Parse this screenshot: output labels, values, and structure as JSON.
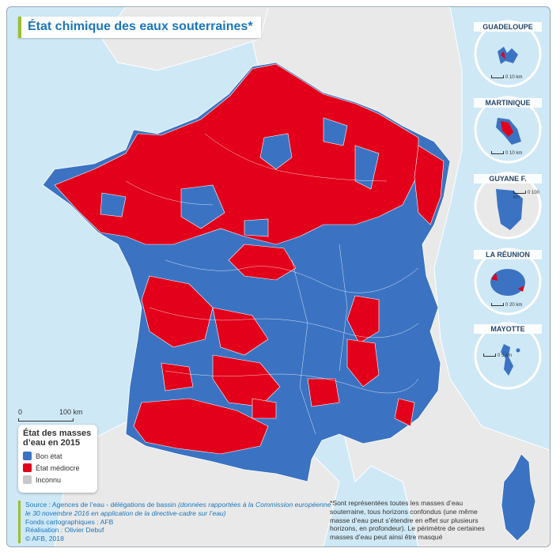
{
  "title": "État chimique des eaux souterraines*",
  "colors": {
    "sea": "#cfe8f6",
    "land": "#e9e9e9",
    "good": "#3b73c2",
    "poor": "#e2001a",
    "unknown": "#c8c8c8",
    "accent": "#9bbf2d",
    "title": "#1b76bc"
  },
  "insets": [
    {
      "name": "GUADELOUPE",
      "scale": "0   10 km"
    },
    {
      "name": "MARTINIQUE",
      "scale": "0   10 km"
    },
    {
      "name": "GUYANE F.",
      "scale": "0   100 km"
    },
    {
      "name": "LA RÉUNION",
      "scale": "0   20 km"
    },
    {
      "name": "MAYOTTE",
      "scale": "0   5 km"
    }
  ],
  "scale_bar": {
    "start": "0",
    "end": "100 km"
  },
  "legend": {
    "title": "État des masses d’eau en 2015",
    "items": [
      {
        "label": "Bon état",
        "color": "#3b73c2"
      },
      {
        "label": "État médiocre",
        "color": "#e2001a"
      },
      {
        "label": "Inconnu",
        "color": "#c8c8c8"
      }
    ]
  },
  "source": {
    "line1_prefix": "Source : Agences de l’eau - délégations de bassin ",
    "line1_italic": "(données rapportées à la Commission européenne le 30 novembre 2016 en application de la directive-cadre sur l’eau)",
    "fonds": "Fonds cartographiques : AFB",
    "realisation": "Réalisation : Olivier Debuf",
    "copyright": "© AFB, 2018"
  },
  "footnote": "*Sont représentées toutes les masses d’eau souterraine, tous horizons confondus (une même masse d’eau peut s’étendre en effet sur plusieurs horizons, en profondeur). Le périmètre de certaines masses d’eau peut ainsi être masqué"
}
